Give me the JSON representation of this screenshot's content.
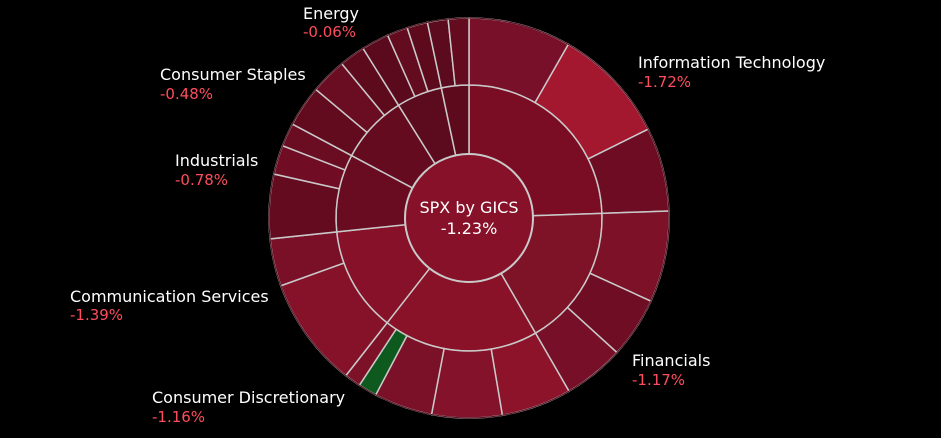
{
  "chart_data": {
    "type": "sunburst",
    "title": "SPX by GICS",
    "total_change": "-1.23%",
    "sectors": [
      {
        "name": "Information Technology",
        "change": "-1.72%",
        "color": "#7a0d24",
        "children": [
          {
            "change_color": "#79102a",
            "weight": 22
          },
          {
            "change_color": "#a3172f",
            "weight": 25
          },
          {
            "change_color": "#6e0c23",
            "weight": 18
          }
        ]
      },
      {
        "name": "Financials",
        "change": "-1.17%",
        "color": "#7e1227",
        "children": [
          {
            "change_color": "#7c1128",
            "weight": 30
          },
          {
            "change_color": "#6f0d24",
            "weight": 20
          },
          {
            "change_color": "#760f27",
            "weight": 20
          }
        ]
      },
      {
        "name": "Consumer Discretionary",
        "change": "-1.16%",
        "color": "#8a1228",
        "children": [
          {
            "change_color": "#8c1329",
            "weight": 30
          },
          {
            "change_color": "#84122a",
            "weight": 30
          },
          {
            "change_color": "#7b1128",
            "weight": 25
          },
          {
            "change_color": "#0e5a1e",
            "weight": 8
          },
          {
            "change_color": "#7d1128",
            "weight": 7
          }
        ]
      },
      {
        "name": "Communication Services",
        "change": "-1.39%",
        "color": "#861129",
        "children": [
          {
            "change_color": "#851229",
            "weight": 70
          },
          {
            "change_color": "#7a1028",
            "weight": 30
          }
        ]
      },
      {
        "name": "Industrials",
        "change": "-0.78%",
        "color": "#6a0c21",
        "children": [
          {
            "change_color": "#650b20",
            "weight": 55
          },
          {
            "change_color": "#700d24",
            "weight": 25
          },
          {
            "change_color": "#6a0c22",
            "weight": 20
          }
        ]
      },
      {
        "name": "Consumer Staples",
        "change": "-0.48%",
        "color": "#640b1f",
        "children": [
          {
            "change_color": "#620b1f",
            "weight": 40
          },
          {
            "change_color": "#6a0c22",
            "weight": 35
          },
          {
            "change_color": "#5e0a1d",
            "weight": 25
          }
        ]
      },
      {
        "name": "Energy",
        "change": "-0.06%",
        "color": "#5c0a1d",
        "children": [
          {
            "change_color": "#5a0a1c",
            "weight": 40
          },
          {
            "change_color": "#630b1f",
            "weight": 30
          },
          {
            "change_color": "#5e0a1d",
            "weight": 30
          }
        ]
      },
      {
        "name": "",
        "change": "",
        "color": "#5e0a1d",
        "children": [
          {
            "change_color": "#5c0a1d",
            "weight": 50
          },
          {
            "change_color": "#640b20",
            "weight": 50
          }
        ]
      }
    ]
  }
}
